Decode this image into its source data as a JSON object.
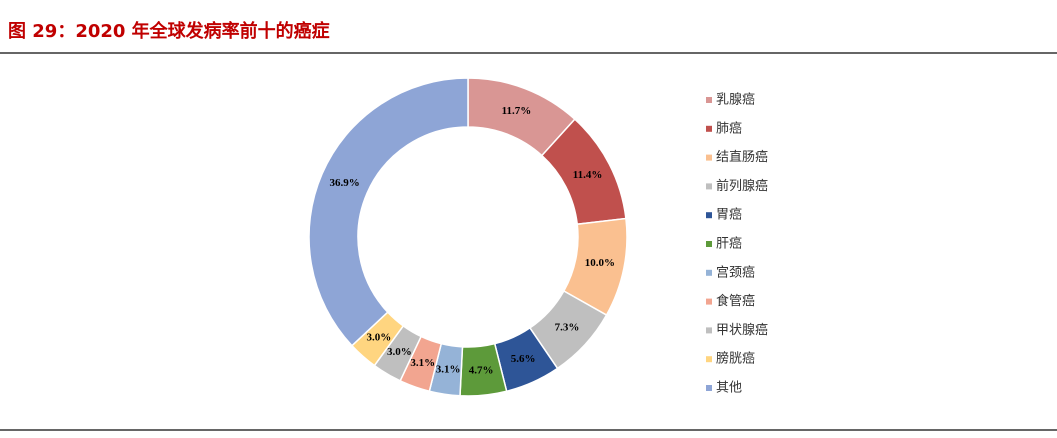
{
  "chart_data": {
    "type": "donut",
    "title": "图 29：2020 年全球发病率前十的癌症",
    "categories": [
      "乳腺癌",
      "肺癌",
      "结直肠癌",
      "前列腺癌",
      "胃癌",
      "肝癌",
      "宫颈癌",
      "食管癌",
      "甲状腺癌",
      "膀胱癌",
      "其他"
    ],
    "values": [
      11.7,
      11.4,
      10.0,
      7.3,
      5.6,
      4.7,
      3.1,
      3.1,
      3.0,
      3.0,
      36.9
    ],
    "value_labels": [
      "11.7%",
      "11.4%",
      "10.0%",
      "7.3%",
      "5.6%",
      "4.7%",
      "3.1%",
      "3.1%",
      "3.0%",
      "3.0%",
      "36.9%"
    ],
    "colors": [
      "#d99694",
      "#c0504d",
      "#fac090",
      "#bfbfbf",
      "#2e5597",
      "#5d9a3a",
      "#95b3d7",
      "#f2a590",
      "#bfbfbf",
      "#ffd580",
      "#8ea5d6"
    ],
    "legend": "right"
  }
}
